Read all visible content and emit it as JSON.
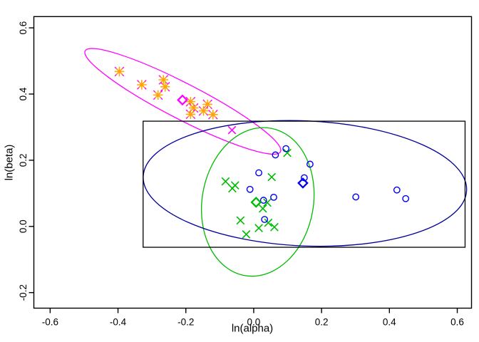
{
  "chart_data": {
    "type": "scatter",
    "title": "",
    "xlabel": "ln(alpha)",
    "ylabel": "ln(beta)",
    "xlim": [
      -0.648,
      0.642
    ],
    "ylim": [
      -0.247,
      0.634
    ],
    "xticks": [
      -0.6,
      -0.4,
      -0.2,
      0.0,
      0.2,
      0.4,
      0.6
    ],
    "xtick_labels": [
      "-0.6",
      "-0.4",
      "-0.2",
      "0.0",
      "0.2",
      "0.4",
      "0.6"
    ],
    "yticks": [
      -0.2,
      0.0,
      0.2,
      0.4,
      0.6
    ],
    "ytick_labels": [
      "-0.2",
      "0.0",
      "0.2",
      "0.4",
      "0.6"
    ],
    "grid": false,
    "legend": "none",
    "colors": {
      "orange": "#FFA500",
      "magenta": "#FF00FF",
      "green": "#00BB00",
      "blue": "#0000EE",
      "navy": "#000099",
      "black": "#000000"
    },
    "series": [
      {
        "name": "cluster-1-asterisks",
        "marker": "asterisk-8ray",
        "color": "#FFA500",
        "accent_color": "#FF00FF",
        "points": [
          [
            -0.396,
            0.468
          ],
          [
            -0.33,
            0.428
          ],
          [
            -0.266,
            0.443
          ],
          [
            -0.261,
            0.422
          ],
          [
            -0.282,
            0.397
          ],
          [
            -0.186,
            0.377
          ],
          [
            -0.177,
            0.358
          ],
          [
            -0.136,
            0.369
          ],
          [
            -0.186,
            0.339
          ],
          [
            -0.148,
            0.349
          ],
          [
            -0.12,
            0.338
          ]
        ]
      },
      {
        "name": "cluster-1-extra-cross",
        "marker": "x",
        "color": "#FF00FF",
        "points": [
          [
            -0.064,
            0.291
          ]
        ]
      },
      {
        "name": "cluster-2-crosses",
        "marker": "x",
        "color": "#00BB00",
        "points": [
          [
            0.099,
            0.222
          ],
          [
            0.053,
            0.149
          ],
          [
            -0.083,
            0.136
          ],
          [
            -0.063,
            0.115
          ],
          [
            -0.055,
            0.124
          ],
          [
            0.04,
            0.072
          ],
          [
            0.027,
            0.054
          ],
          [
            -0.039,
            0.018
          ],
          [
            0.043,
            0.011
          ],
          [
            0.015,
            -0.005
          ],
          [
            0.061,
            -0.002
          ],
          [
            -0.022,
            -0.024
          ]
        ]
      },
      {
        "name": "cluster-3-circles",
        "marker": "circle-open",
        "color": "#0000EE",
        "points": [
          [
            0.095,
            0.235
          ],
          [
            0.064,
            0.216
          ],
          [
            0.166,
            0.188
          ],
          [
            0.015,
            0.162
          ],
          [
            -0.011,
            0.112
          ],
          [
            0.149,
            0.147
          ],
          [
            0.029,
            0.079
          ],
          [
            0.059,
            0.088
          ],
          [
            0.032,
            0.021
          ],
          [
            0.301,
            0.089
          ],
          [
            0.422,
            0.11
          ],
          [
            0.448,
            0.084
          ]
        ]
      }
    ],
    "centroids": [
      {
        "name": "cluster-1-centroid",
        "marker": "diamond-open",
        "color": "#FF00FF",
        "x": -0.21,
        "y": 0.382
      },
      {
        "name": "cluster-2-centroid",
        "marker": "diamond-open",
        "color": "#00BB00",
        "x": 0.007,
        "y": 0.073
      },
      {
        "name": "cluster-3-centroid",
        "marker": "diamond-open",
        "color": "#0000EE",
        "x": 0.145,
        "y": 0.131
      }
    ],
    "ellipses": [
      {
        "name": "cluster-1-ellipse",
        "color": "#FF00FF",
        "cx": -0.209,
        "cy": 0.378,
        "rx": 0.324,
        "ry": 0.054,
        "tilt_deg": 27.3
      },
      {
        "name": "cluster-2-ellipse",
        "color": "#00BB00",
        "cx": 0.012,
        "cy": 0.074,
        "rx": 0.164,
        "ry": 0.226,
        "tilt_deg": 10
      },
      {
        "name": "cluster-3-ellipse",
        "color": "#000099",
        "cx": 0.151,
        "cy": 0.13,
        "rx": 0.477,
        "ry": 0.189,
        "tilt_deg": 2.5
      }
    ],
    "rectangle": {
      "x0": -0.326,
      "x1": 0.623,
      "y0": -0.063,
      "y1": 0.318,
      "color": "#000000"
    }
  }
}
